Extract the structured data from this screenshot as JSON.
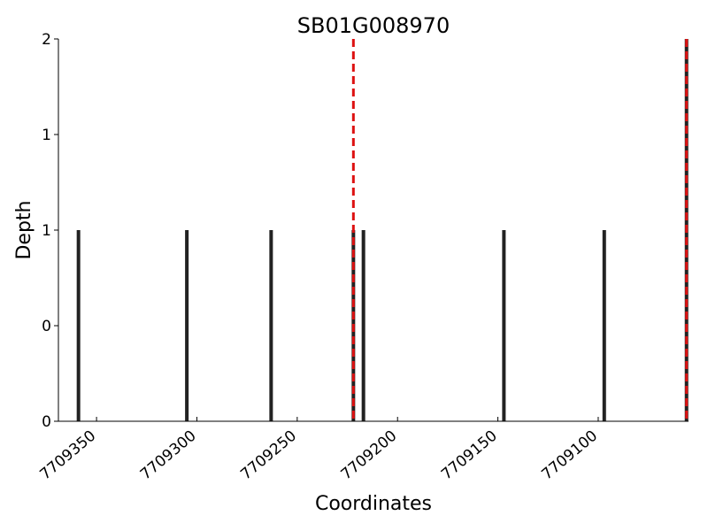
{
  "chart_data": {
    "type": "bar",
    "title": "SB01G008970",
    "xlabel": "Coordinates",
    "ylabel": "Depth",
    "x_direction": "reversed",
    "xlim": [
      7709369,
      7709055
    ],
    "ylim": [
      0,
      2
    ],
    "x_ticks": [
      7709350,
      7709300,
      7709250,
      7709200,
      7709150,
      7709100
    ],
    "x_tick_labels": [
      "7709350",
      "7709300",
      "7709250",
      "7709200",
      "7709150",
      "7709100"
    ],
    "y_ticks": [
      0,
      0.5,
      1,
      1.5,
      2
    ],
    "y_tick_labels": [
      "0",
      "0",
      "1",
      "1",
      "2"
    ],
    "bar_color": "#222222",
    "x": [
      7709359,
      7709305,
      7709263,
      7709222,
      7709217,
      7709147,
      7709097,
      7709056
    ],
    "values": [
      1,
      1,
      1,
      1,
      1,
      1,
      1,
      2
    ],
    "reference_lines": {
      "color": "#dd1111",
      "style": "dashed",
      "x": [
        7709222,
        7709056
      ]
    },
    "grid": false,
    "legend": "none"
  }
}
